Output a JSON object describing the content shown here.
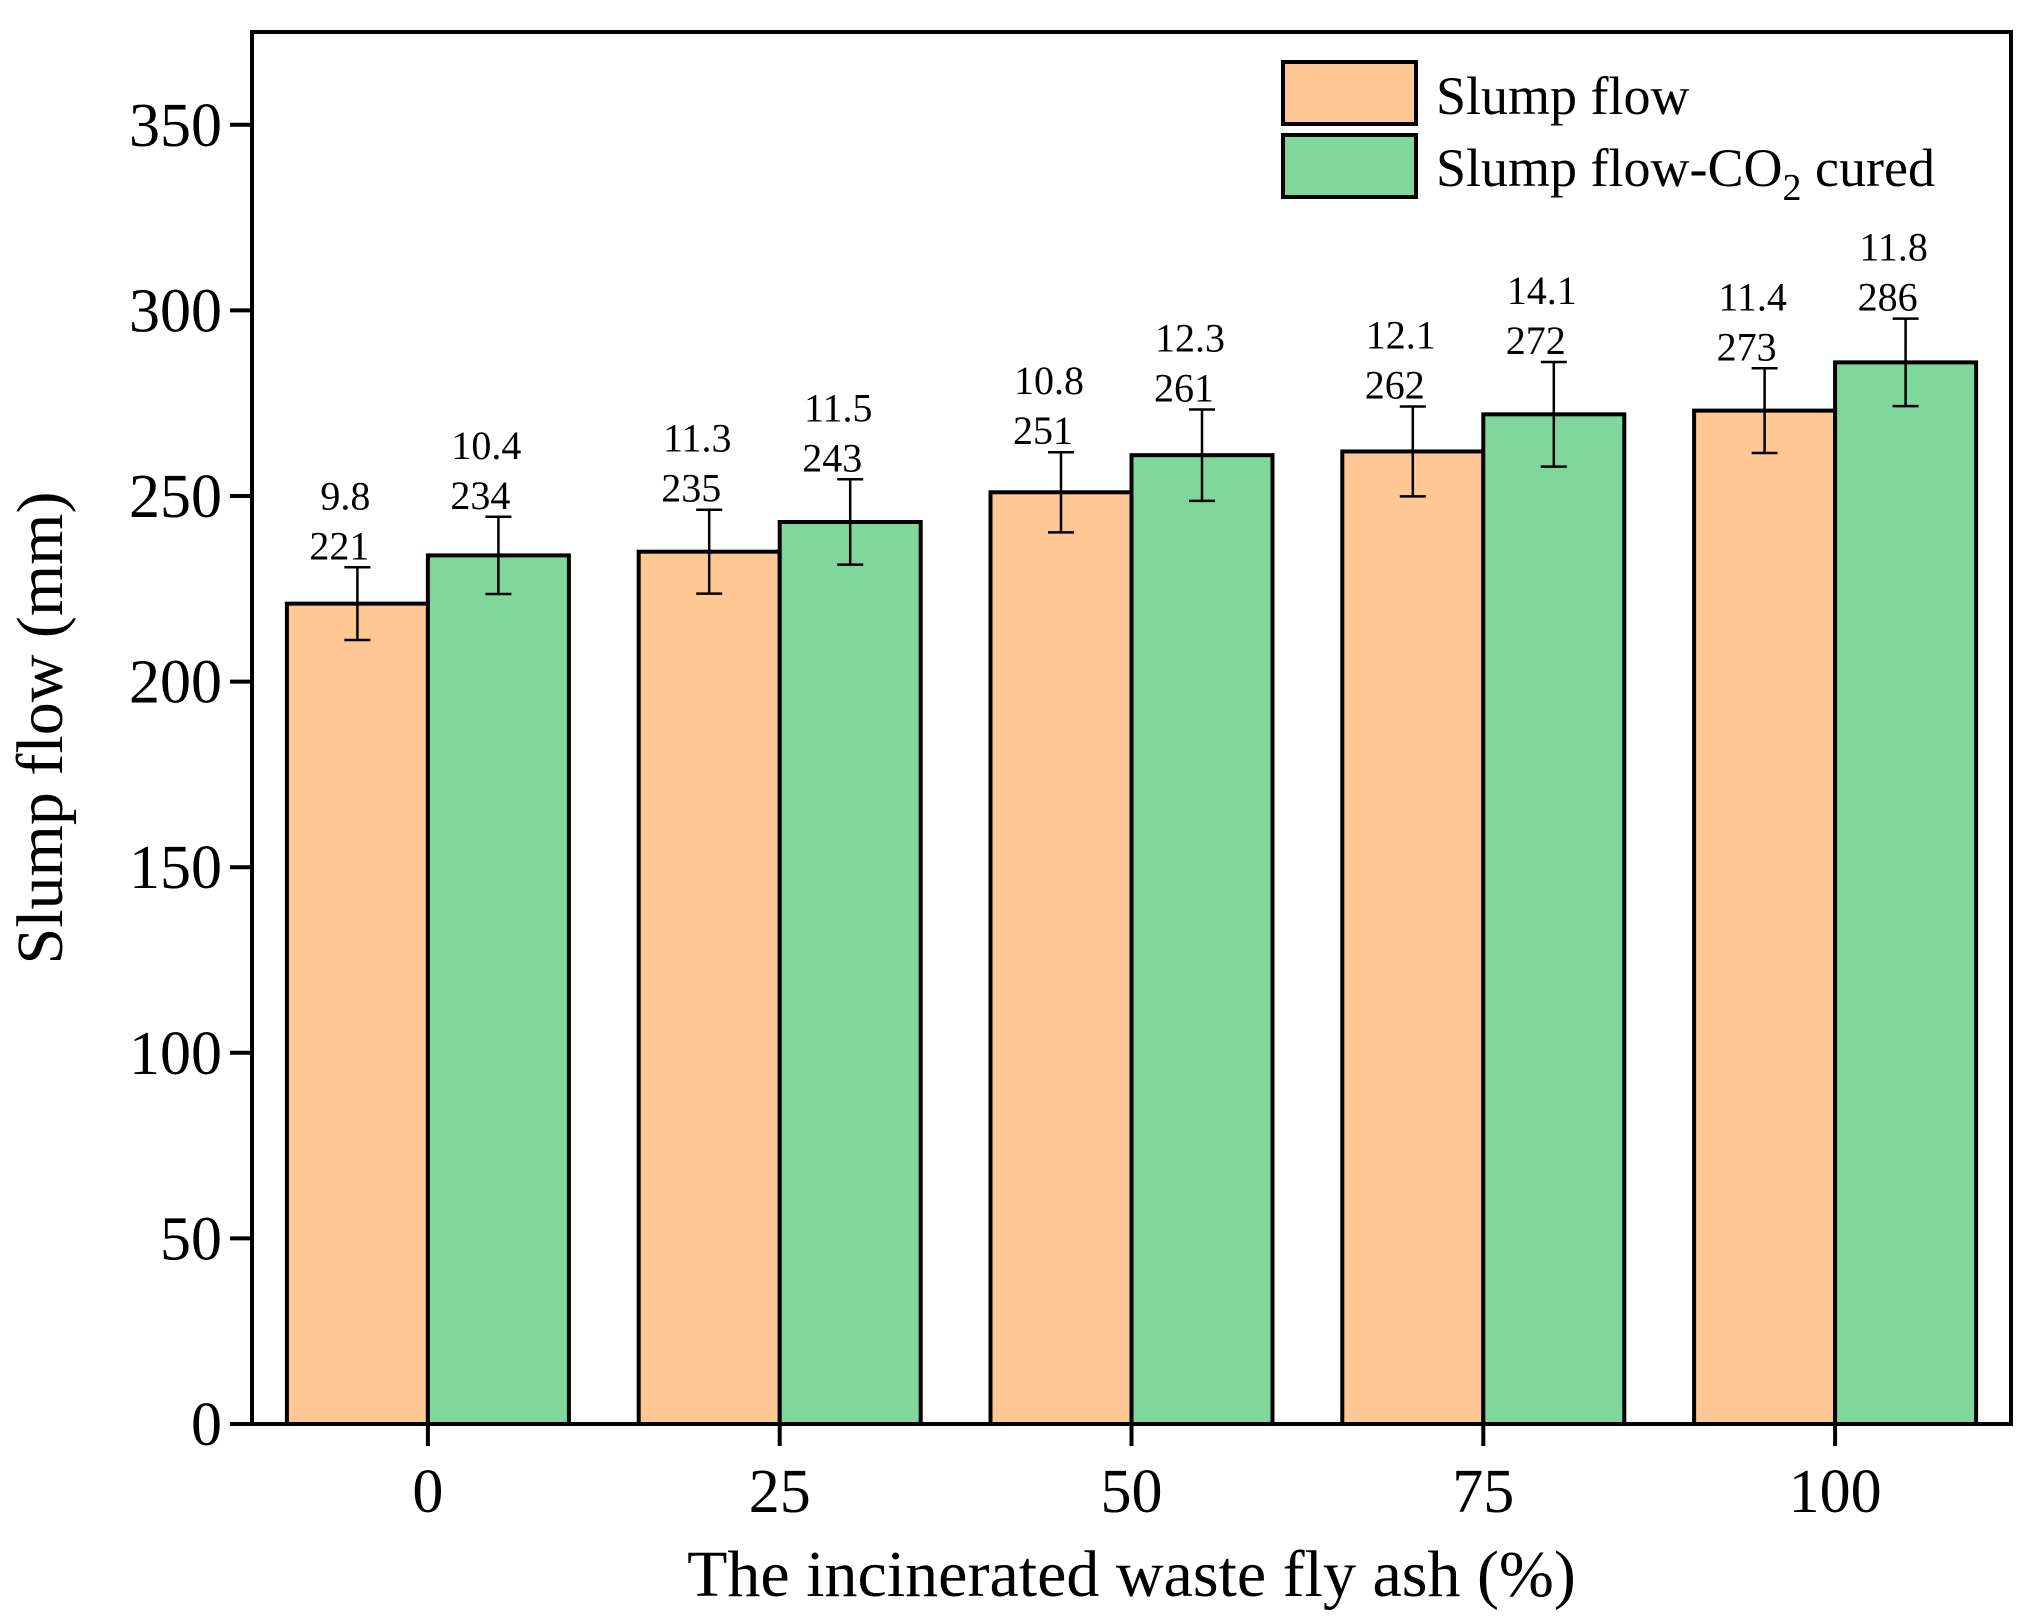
{
  "chart_data": {
    "type": "bar",
    "xlabel": "The incinerated waste fly ash (%)",
    "ylabel": "Slump flow (mm)",
    "categories": [
      "0",
      "25",
      "50",
      "75",
      "100"
    ],
    "ylim": [
      0,
      375
    ],
    "yticks": [
      0,
      50,
      100,
      150,
      200,
      250,
      300,
      350
    ],
    "grid": false,
    "legend_position": "top-right",
    "series": [
      {
        "name": "Slump flow",
        "color": "#FEC794",
        "values": [
          221,
          235,
          251,
          262,
          273
        ],
        "errors": [
          9.8,
          11.3,
          10.8,
          12.1,
          11.4
        ],
        "value_labels": [
          "221",
          "235",
          "251",
          "262",
          "273"
        ],
        "error_labels": [
          "9.8",
          "11.3",
          "10.8",
          "12.1",
          "11.4"
        ]
      },
      {
        "name": "Slump flow-CO",
        "name_subscript": "2",
        "name_suffix": " cured",
        "color": "#7FD79B",
        "values": [
          234,
          243,
          261,
          272,
          286
        ],
        "errors": [
          10.4,
          11.5,
          12.3,
          14.1,
          11.8
        ],
        "value_labels": [
          "234",
          "243",
          "261",
          "272",
          "286"
        ],
        "error_labels": [
          "10.4",
          "11.5",
          "12.3",
          "14.1",
          "11.8"
        ]
      }
    ]
  }
}
